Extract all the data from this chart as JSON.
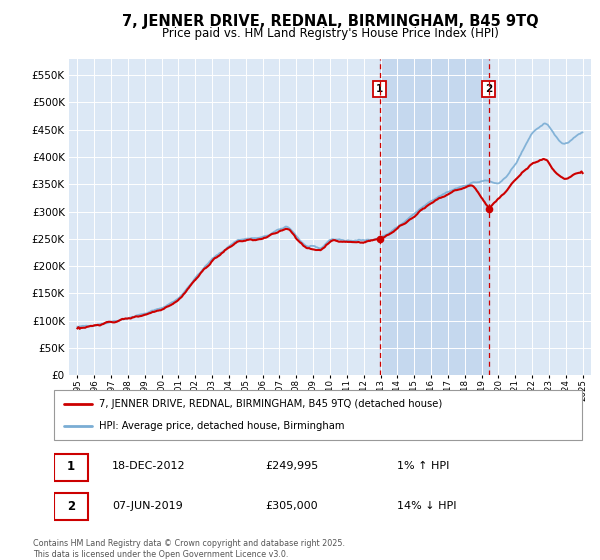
{
  "title": "7, JENNER DRIVE, REDNAL, BIRMINGHAM, B45 9TQ",
  "subtitle": "Price paid vs. HM Land Registry's House Price Index (HPI)",
  "legend_line1": "7, JENNER DRIVE, REDNAL, BIRMINGHAM, B45 9TQ (detached house)",
  "legend_line2": "HPI: Average price, detached house, Birmingham",
  "marker1_date_num": 2012.96,
  "marker1_date_str": "18-DEC-2012",
  "marker1_price": 249995,
  "marker1_label": "1% ↑ HPI",
  "marker2_date_num": 2019.43,
  "marker2_date_str": "07-JUN-2019",
  "marker2_price": 305000,
  "marker2_label": "14% ↓ HPI",
  "ylim": [
    0,
    580000
  ],
  "xlim_start": 1994.5,
  "xlim_end": 2025.5,
  "chart_bg_color": "#dce8f5",
  "shaded_region_color": "#c5d8ee",
  "shaded_region_start": 2012.96,
  "shaded_region_end": 2019.43,
  "footer": "Contains HM Land Registry data © Crown copyright and database right 2025.\nThis data is licensed under the Open Government Licence v3.0.",
  "red_color": "#cc0000",
  "blue_color": "#7aadd4"
}
